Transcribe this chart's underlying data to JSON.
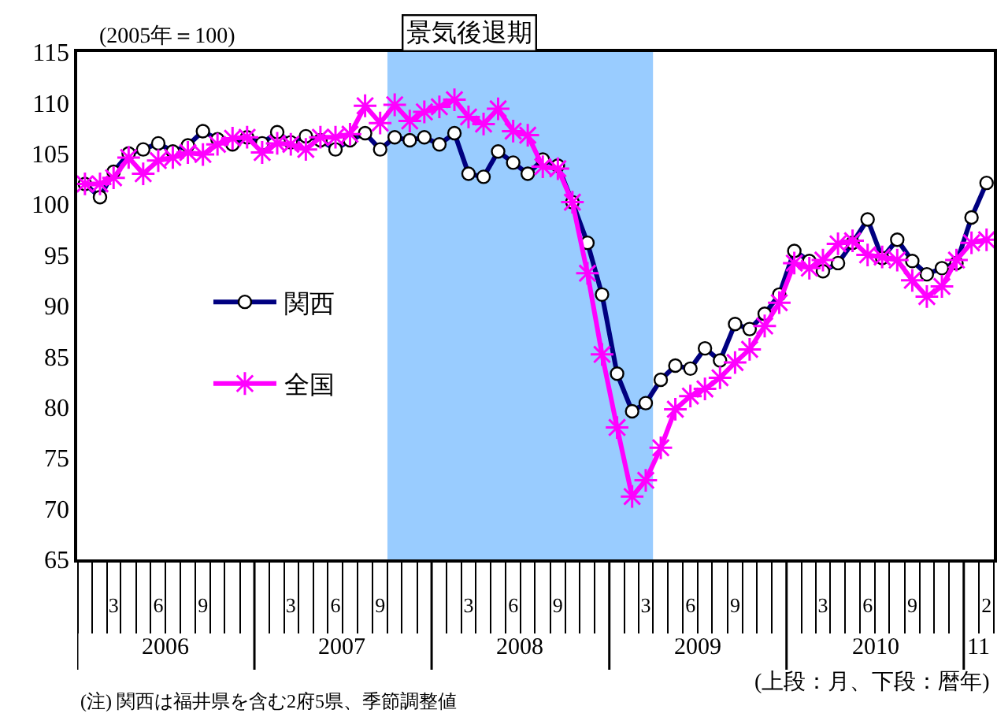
{
  "chart_data": {
    "type": "line",
    "ylabel": "(2005年＝100)",
    "x": [
      "2006-01",
      "2006-02",
      "2006-03",
      "2006-04",
      "2006-05",
      "2006-06",
      "2006-07",
      "2006-08",
      "2006-09",
      "2006-10",
      "2006-11",
      "2006-12",
      "2007-01",
      "2007-02",
      "2007-03",
      "2007-04",
      "2007-05",
      "2007-06",
      "2007-07",
      "2007-08",
      "2007-09",
      "2007-10",
      "2007-11",
      "2007-12",
      "2008-01",
      "2008-02",
      "2008-03",
      "2008-04",
      "2008-05",
      "2008-06",
      "2008-07",
      "2008-08",
      "2008-09",
      "2008-10",
      "2008-11",
      "2008-12",
      "2009-01",
      "2009-02",
      "2009-03",
      "2009-04",
      "2009-05",
      "2009-06",
      "2009-07",
      "2009-08",
      "2009-09",
      "2009-10",
      "2009-11",
      "2009-12",
      "2010-01",
      "2010-02",
      "2010-03",
      "2010-04",
      "2010-05",
      "2010-06",
      "2010-07",
      "2010-08",
      "2010-09",
      "2010-10",
      "2010-11",
      "2010-12",
      "2011-01",
      "2011-02"
    ],
    "series": [
      {
        "name": "関西",
        "color": "#000080",
        "marker": "circle",
        "values": [
          102.0,
          100.7,
          103.2,
          105.0,
          105.4,
          106.0,
          105.2,
          105.8,
          107.2,
          106.4,
          105.9,
          106.6,
          106.0,
          107.1,
          106.1,
          106.7,
          106.3,
          105.4,
          106.3,
          107.0,
          105.4,
          106.6,
          106.3,
          106.6,
          105.9,
          107.0,
          103.0,
          102.7,
          105.2,
          104.1,
          103.0,
          104.4,
          103.8,
          100.2,
          96.2,
          91.1,
          83.3,
          79.6,
          80.4,
          82.7,
          84.1,
          83.8,
          85.8,
          84.6,
          88.2,
          87.7,
          89.2,
          91.1,
          95.4,
          94.4,
          93.4,
          94.2,
          96.2,
          98.5,
          94.7,
          96.5,
          94.4,
          93.1,
          93.7,
          94.2,
          98.7,
          102.1
        ]
      },
      {
        "name": "全国",
        "color": "#ff00ff",
        "marker": "cross",
        "values": [
          102.0,
          102.0,
          102.6,
          104.6,
          103.0,
          104.3,
          104.6,
          105.1,
          104.9,
          105.9,
          106.5,
          106.6,
          105.1,
          106.0,
          105.9,
          105.4,
          106.6,
          106.6,
          106.9,
          109.7,
          108.0,
          109.8,
          108.2,
          109.1,
          109.6,
          110.3,
          108.6,
          107.9,
          109.4,
          107.2,
          106.8,
          103.7,
          103.5,
          100.2,
          93.2,
          85.2,
          78.0,
          71.2,
          72.8,
          76.0,
          79.8,
          81.1,
          81.8,
          82.9,
          84.4,
          85.7,
          88.0,
          90.3,
          94.2,
          93.7,
          94.5,
          96.1,
          96.4,
          95.0,
          94.8,
          94.5,
          92.5,
          90.9,
          91.9,
          94.5,
          96.2,
          96.5
        ]
      }
    ],
    "ylim": [
      65,
      115
    ],
    "yticks": [
      65,
      70,
      75,
      80,
      85,
      90,
      95,
      100,
      105,
      110,
      115
    ],
    "xlim": [
      "2005-12-16",
      "2011-02-16"
    ],
    "xticks": [
      {
        "value": "2006-03",
        "label": "3"
      },
      {
        "value": "2006-06",
        "label": "6"
      },
      {
        "value": "2006-09",
        "label": "9"
      },
      {
        "value": "2007-03",
        "label": "3"
      },
      {
        "value": "2007-06",
        "label": "6"
      },
      {
        "value": "2007-09",
        "label": "9"
      },
      {
        "value": "2008-03",
        "label": "3"
      },
      {
        "value": "2008-06",
        "label": "6"
      },
      {
        "value": "2008-09",
        "label": "9"
      },
      {
        "value": "2009-03",
        "label": "3"
      },
      {
        "value": "2009-06",
        "label": "6"
      },
      {
        "value": "2009-09",
        "label": "9"
      },
      {
        "value": "2010-03",
        "label": "3"
      },
      {
        "value": "2010-06",
        "label": "6"
      },
      {
        "value": "2010-09",
        "label": "9"
      },
      {
        "value": "2011-02",
        "label": "2"
      }
    ],
    "bands": [
      {
        "axis": "x",
        "from": "2007-09-16",
        "to": "2009-03-16",
        "label": "景気後退期",
        "color": "#99ccff"
      }
    ],
    "annotations": [
      "2006",
      "2007",
      "2008",
      "2009",
      "2010",
      "11",
      "(上段：月、下段：暦年)",
      "(注) 関西は福井県を含む2府5県、季節調整値"
    ],
    "legend": "left",
    "grid": false
  }
}
